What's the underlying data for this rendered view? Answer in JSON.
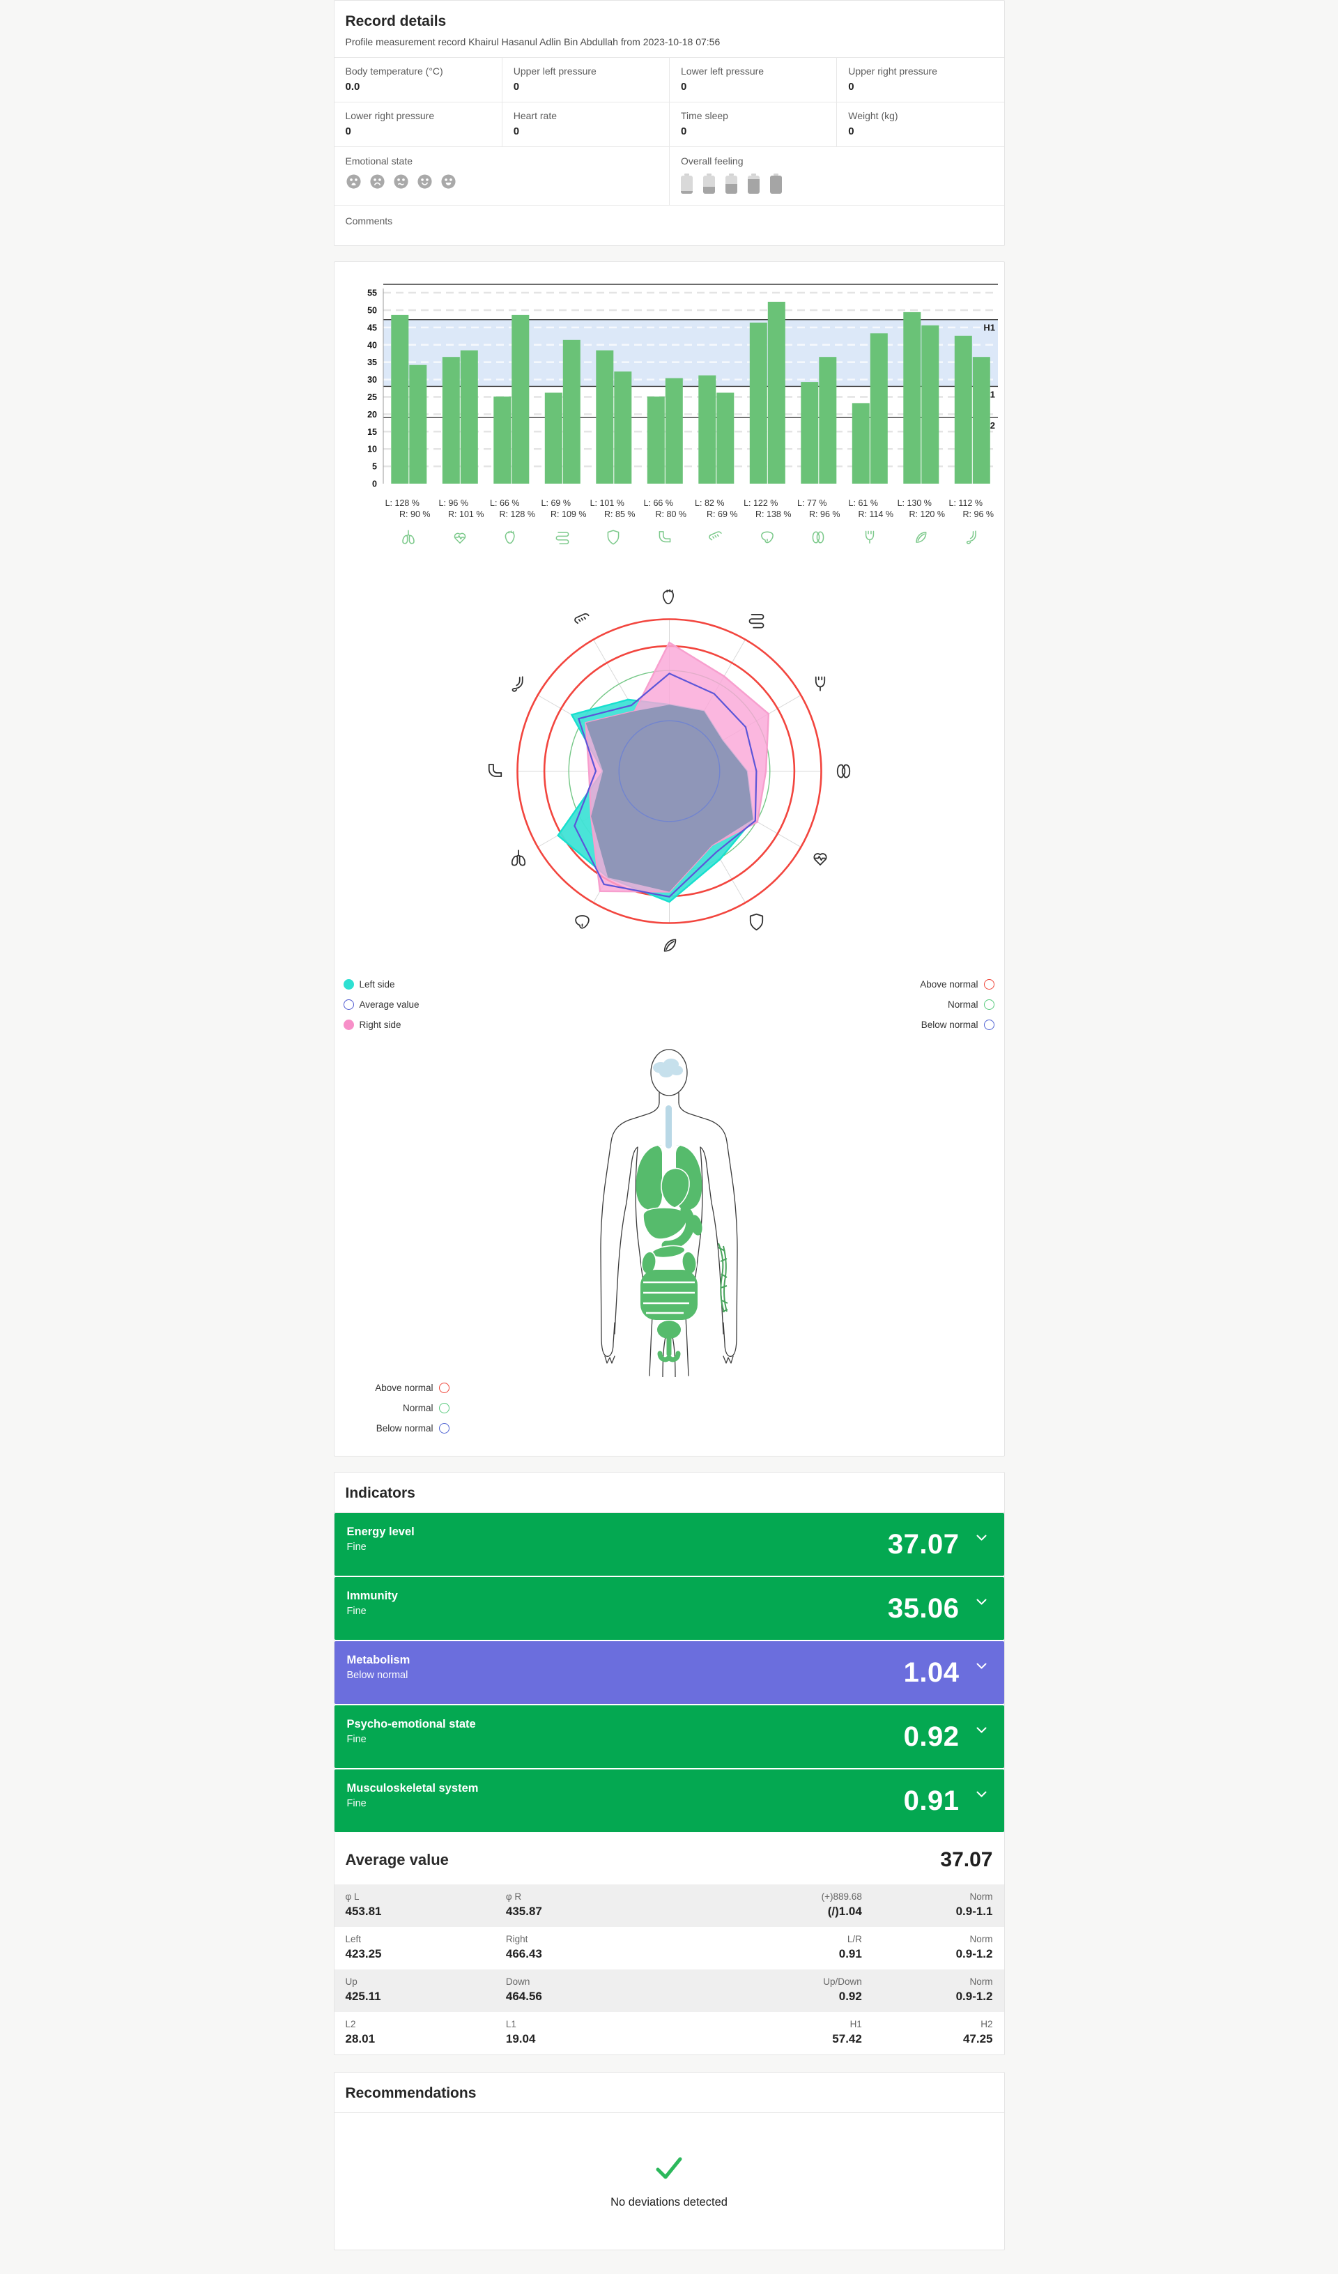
{
  "record": {
    "title": "Record details",
    "subtitle": "Profile measurement record Khairul Hasanul Adlin Bin Abdullah from 2023-10-18 07:56",
    "fields": [
      {
        "label": "Body temperature (°C)",
        "value": "0.0"
      },
      {
        "label": "Upper left pressure",
        "value": "0"
      },
      {
        "label": "Lower left pressure",
        "value": "0"
      },
      {
        "label": "Upper right pressure",
        "value": "0"
      },
      {
        "label": "Lower right pressure",
        "value": "0"
      },
      {
        "label": "Heart rate",
        "value": "0"
      },
      {
        "label": "Time sleep",
        "value": "0"
      },
      {
        "label": "Weight (kg)",
        "value": "0"
      }
    ],
    "emotional_state_label": "Emotional state",
    "overall_feeling_label": "Overall feeling",
    "comments_label": "Comments",
    "emoji_levels": [
      "very-sad",
      "sad",
      "wry",
      "happy",
      "very-happy"
    ],
    "battery_levels": [
      0.15,
      0.4,
      0.55,
      0.8,
      1
    ]
  },
  "chart_data": [
    {
      "type": "bar",
      "title": "Organ measurement bars (left/right)",
      "categories": [
        "lungs",
        "cardio-heart",
        "heart",
        "intestines",
        "immunity-shield",
        "colon",
        "pancreas",
        "liver",
        "kidneys",
        "bladder",
        "spleen",
        "stomach"
      ],
      "series": [
        {
          "name": "Left",
          "values": [
            48.6,
            36.5,
            25.1,
            26.2,
            38.4,
            25.1,
            31.2,
            46.4,
            29.3,
            23.2,
            49.4,
            42.6
          ]
        },
        {
          "name": "Right",
          "values": [
            34.2,
            38.4,
            48.6,
            41.4,
            32.3,
            30.4,
            26.2,
            52.4,
            36.5,
            43.3,
            45.6,
            36.5
          ]
        }
      ],
      "labels": [
        {
          "l": "L: 128 %",
          "r": "R: 90 %"
        },
        {
          "l": "L: 96 %",
          "r": "R: 101 %"
        },
        {
          "l": "L: 66 %",
          "r": "R: 128 %"
        },
        {
          "l": "L: 69 %",
          "r": "R: 109 %"
        },
        {
          "l": "L: 101 %",
          "r": "R: 85 %"
        },
        {
          "l": "L: 66 %",
          "r": "R: 80 %"
        },
        {
          "l": "L: 82 %",
          "r": "R: 69 %"
        },
        {
          "l": "L: 122 %",
          "r": "R: 138 %"
        },
        {
          "l": "L: 77 %",
          "r": "R: 96 %"
        },
        {
          "l": "L: 61 %",
          "r": "R: 114 %"
        },
        {
          "l": "L: 130 %",
          "r": "R: 120 %"
        },
        {
          "l": "L: 112 %",
          "r": "R: 96 %"
        }
      ],
      "ylim": [
        0,
        57.42
      ],
      "yticks": [
        0,
        5,
        10,
        15,
        20,
        25,
        30,
        35,
        40,
        45,
        50,
        55
      ],
      "ref_lines": {
        "top": 57.42,
        "H1": 47.25,
        "L1": 28.01,
        "L2": 19.04
      },
      "normal_band": [
        28.01,
        47.25
      ],
      "bar_color": "#6ac277",
      "band_color": "#dce8f8"
    },
    {
      "type": "radar",
      "title": "Organ balance radar",
      "axes": [
        "heart",
        "intestines",
        "bladder",
        "kidneys",
        "cardio-heart",
        "immunity-shield",
        "spleen",
        "liver",
        "lungs",
        "colon",
        "stomach",
        "pancreas"
      ],
      "rmax": 57.42,
      "series": [
        {
          "name": "Left side",
          "values": [
            25.1,
            26.2,
            23.2,
            29.3,
            36.5,
            38.4,
            49.4,
            46.4,
            48.6,
            25.1,
            42.6,
            31.2
          ],
          "color": "#17dfce",
          "fill": "rgba(64,227,214,0.95)"
        },
        {
          "name": "Right side",
          "values": [
            48.6,
            41.4,
            43.3,
            36.5,
            38.4,
            32.3,
            45.6,
            52.4,
            34.2,
            30.4,
            36.5,
            26.2
          ],
          "color": "#f79fce",
          "fill": "rgba(250,167,216,0.82)"
        },
        {
          "name": "Average value",
          "values": [
            36.9,
            33.8,
            33.3,
            32.9,
            37.5,
            35.4,
            47.5,
            49.4,
            41.4,
            27.8,
            39.6,
            28.7
          ],
          "color": "#5b55d8"
        }
      ],
      "rings": [
        {
          "value": 57.42,
          "color": "#f2453e",
          "width": 2.6
        },
        {
          "value": 47.25,
          "color": "#f2453e",
          "width": 2.6
        },
        {
          "value": 38,
          "color": "#74c786",
          "width": 1.4
        },
        {
          "value": 19.04,
          "color": "#7a8ed8",
          "width": 1.4
        }
      ]
    }
  ],
  "radar_legend": {
    "left": [
      {
        "label": "Left side",
        "color": "#2ee0d2",
        "style": "filled"
      },
      {
        "label": "Average value",
        "color": "#4f5ad0",
        "style": "outline"
      },
      {
        "label": "Right side",
        "color": "#f78fc8",
        "style": "filled"
      }
    ],
    "right": [
      {
        "label": "Above normal",
        "color": "#ef4438",
        "style": "outline"
      },
      {
        "label": "Normal",
        "color": "#57c97c",
        "style": "outline"
      },
      {
        "label": "Below normal",
        "color": "#4f63d2",
        "style": "outline"
      }
    ]
  },
  "body_map": {
    "legend": [
      {
        "label": "Above normal",
        "color": "#ef4438"
      },
      {
        "label": "Normal",
        "color": "#57c97c"
      },
      {
        "label": "Below normal",
        "color": "#4f63d2"
      }
    ]
  },
  "indicators": {
    "title": "Indicators",
    "rows": [
      {
        "name": "Energy level",
        "status": "Fine",
        "value": "37.07",
        "color": "#04a851"
      },
      {
        "name": "Immunity",
        "status": "Fine",
        "value": "35.06",
        "color": "#04a851"
      },
      {
        "name": "Metabolism",
        "status": "Below normal",
        "value": "1.04",
        "color": "#6b6edd"
      },
      {
        "name": "Psycho-emotional state",
        "status": "Fine",
        "value": "0.92",
        "color": "#04a851"
      },
      {
        "name": "Musculoskeletal system",
        "status": "Fine",
        "value": "0.91",
        "color": "#04a851"
      }
    ],
    "average_label": "Average value",
    "average_value": "37.07",
    "table": [
      [
        {
          "label": "φ L",
          "value": "453.81"
        },
        {
          "label": "φ R",
          "value": "435.87"
        },
        {
          "label": "(+)889.68",
          "value": "(/)1.04"
        },
        {
          "label": "Norm",
          "value": "0.9-1.1"
        }
      ],
      [
        {
          "label": "Left",
          "value": "423.25"
        },
        {
          "label": "Right",
          "value": "466.43"
        },
        {
          "label": "L/R",
          "value": "0.91"
        },
        {
          "label": "Norm",
          "value": "0.9-1.2"
        }
      ],
      [
        {
          "label": "Up",
          "value": "425.11"
        },
        {
          "label": "Down",
          "value": "464.56"
        },
        {
          "label": "Up/Down",
          "value": "0.92"
        },
        {
          "label": "Norm",
          "value": "0.9-1.2"
        }
      ],
      [
        {
          "label": "L2",
          "value": "28.01"
        },
        {
          "label": "L1",
          "value": "19.04"
        },
        {
          "label": "H1",
          "value": "57.42"
        },
        {
          "label": "H2",
          "value": "47.25"
        }
      ]
    ]
  },
  "recommendations": {
    "title": "Recommendations",
    "message": "No deviations detected"
  }
}
